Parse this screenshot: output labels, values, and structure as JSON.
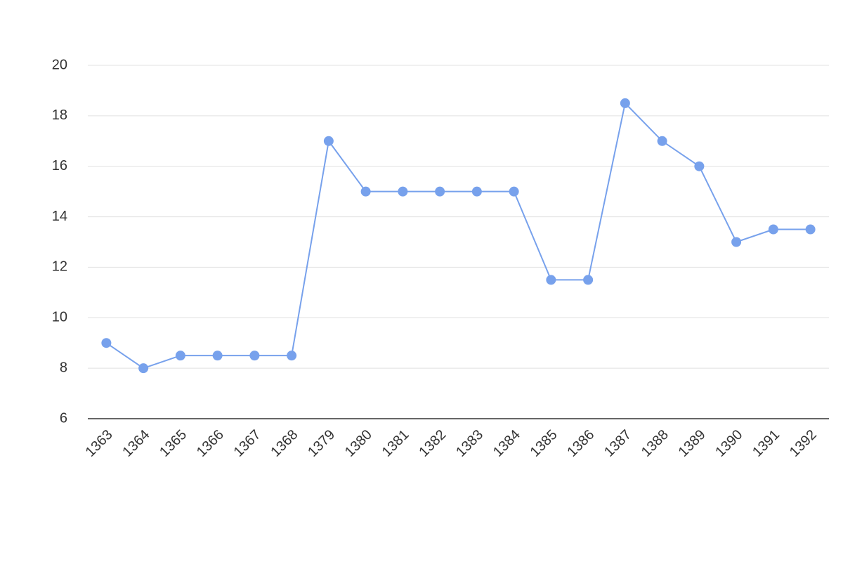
{
  "chart_data": {
    "type": "line",
    "categories": [
      "1363",
      "1364",
      "1365",
      "1366",
      "1367",
      "1368",
      "1379",
      "1380",
      "1381",
      "1382",
      "1383",
      "1384",
      "1385",
      "1386",
      "1387",
      "1388",
      "1389",
      "1390",
      "1391",
      "1392"
    ],
    "series": [
      {
        "color": "#77a1ec",
        "values": [
          9,
          8,
          8.5,
          8.5,
          8.5,
          8.5,
          17,
          15,
          15,
          15,
          15,
          15,
          11.5,
          11.5,
          18.5,
          17,
          16,
          13,
          13.5,
          13.5
        ]
      }
    ],
    "ylim": [
      6,
      20
    ],
    "yticks": [
      6,
      8,
      10,
      12,
      14,
      16,
      18,
      20
    ],
    "grid": true
  }
}
